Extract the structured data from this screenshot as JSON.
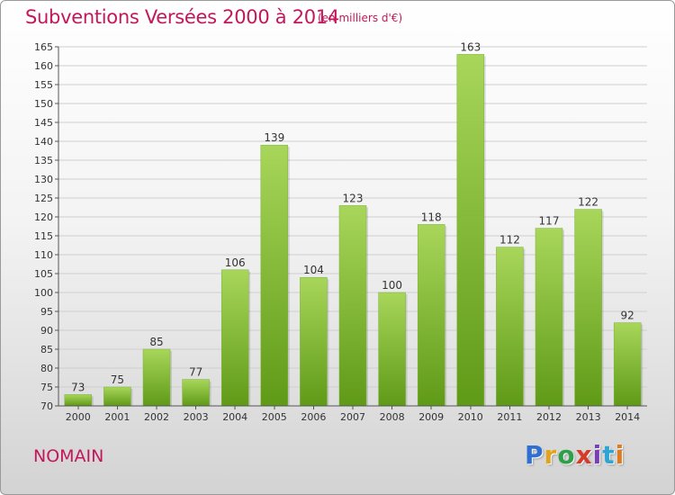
{
  "header": {
    "title": "Subventions Versées 2000 à 2014",
    "subtitle": "(en milliers d'€)"
  },
  "footer": {
    "city": "NOMAIN",
    "logo_text": "Proxiti"
  },
  "colors": {
    "title": "#c2185b",
    "bar_top": "#a8d65a",
    "bar_bottom": "#5f9a17",
    "grid": "#cfcfcf"
  },
  "chart_data": {
    "type": "bar",
    "title": "Subventions Versées 2000 à 2014",
    "subtitle": "(en milliers d'€)",
    "xlabel": "",
    "ylabel": "",
    "categories": [
      "2000",
      "2001",
      "2002",
      "2003",
      "2004",
      "2005",
      "2006",
      "2007",
      "2008",
      "2009",
      "2010",
      "2011",
      "2012",
      "2013",
      "2014"
    ],
    "values": [
      73,
      75,
      85,
      77,
      106,
      139,
      104,
      123,
      100,
      118,
      163,
      112,
      117,
      122,
      92
    ],
    "ylim": [
      70,
      165
    ],
    "yticks": [
      70,
      75,
      80,
      85,
      90,
      95,
      100,
      105,
      110,
      115,
      120,
      125,
      130,
      135,
      140,
      145,
      150,
      155,
      160,
      165
    ],
    "grid": true,
    "data_labels": true
  }
}
